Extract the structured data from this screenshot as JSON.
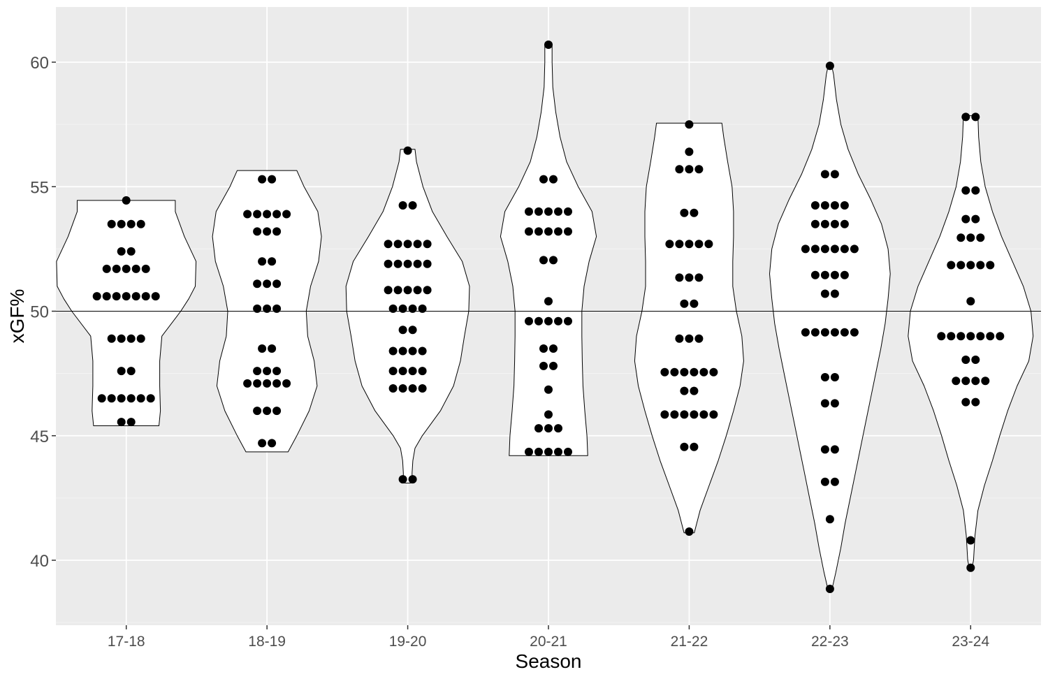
{
  "chart_data": {
    "type": "violin",
    "title": "",
    "xlabel": "Season",
    "ylabel": "xGF%",
    "categories": [
      "17-18",
      "18-19",
      "19-20",
      "20-21",
      "21-22",
      "22-23",
      "23-24"
    ],
    "ylim": [
      37.3,
      62.2
    ],
    "yticks": [
      40,
      45,
      50,
      55,
      60
    ],
    "reference_line": 50,
    "grid": true,
    "panel_color": "#ebebeb",
    "violin_fill": "#ffffff",
    "point_color": "#000000",
    "series": [
      {
        "category": "17-18",
        "ymin": 45.4,
        "ymax": 54.45,
        "profile": [
          [
            45.4,
            0.9
          ],
          [
            46.0,
            0.94
          ],
          [
            47.0,
            0.92
          ],
          [
            48.0,
            0.92
          ],
          [
            49.0,
            0.98
          ],
          [
            50.0,
            1.5
          ],
          [
            50.5,
            1.72
          ],
          [
            51.0,
            1.9
          ],
          [
            52.0,
            1.92
          ],
          [
            53.0,
            1.6
          ],
          [
            54.0,
            1.35
          ],
          [
            54.45,
            1.35
          ]
        ],
        "groups": [
          [
            54.45,
            1
          ],
          [
            53.5,
            4
          ],
          [
            52.4,
            2
          ],
          [
            51.7,
            5
          ],
          [
            50.6,
            7
          ],
          [
            48.9,
            4
          ],
          [
            47.6,
            2
          ],
          [
            46.5,
            6
          ],
          [
            45.55,
            2
          ]
        ]
      },
      {
        "category": "18-19",
        "ymin": 44.35,
        "ymax": 55.65,
        "profile": [
          [
            44.35,
            0.58
          ],
          [
            45.0,
            0.82
          ],
          [
            46.0,
            1.16
          ],
          [
            47.0,
            1.38
          ],
          [
            48.0,
            1.3
          ],
          [
            49.0,
            1.12
          ],
          [
            50.0,
            1.08
          ],
          [
            51.0,
            1.2
          ],
          [
            52.0,
            1.42
          ],
          [
            53.0,
            1.5
          ],
          [
            54.0,
            1.4
          ],
          [
            55.0,
            1.02
          ],
          [
            55.65,
            0.82
          ]
        ],
        "groups": [
          [
            55.3,
            2
          ],
          [
            53.9,
            5
          ],
          [
            53.2,
            3
          ],
          [
            52.0,
            2
          ],
          [
            51.1,
            3
          ],
          [
            50.1,
            3
          ],
          [
            48.5,
            2
          ],
          [
            47.6,
            3
          ],
          [
            47.1,
            5
          ],
          [
            46.0,
            3
          ],
          [
            44.7,
            2
          ]
        ]
      },
      {
        "category": "19-20",
        "ymin": 43.1,
        "ymax": 56.5,
        "profile": [
          [
            43.1,
            0.12
          ],
          [
            43.5,
            0.12
          ],
          [
            44.0,
            0.14
          ],
          [
            44.5,
            0.2
          ],
          [
            45.0,
            0.4
          ],
          [
            46.0,
            0.9
          ],
          [
            47.0,
            1.26
          ],
          [
            48.0,
            1.45
          ],
          [
            49.0,
            1.56
          ],
          [
            50.0,
            1.68
          ],
          [
            51.0,
            1.7
          ],
          [
            52.0,
            1.5
          ],
          [
            53.0,
            1.08
          ],
          [
            54.0,
            0.68
          ],
          [
            55.0,
            0.42
          ],
          [
            56.0,
            0.24
          ],
          [
            56.5,
            0.2
          ]
        ],
        "groups": [
          [
            56.45,
            1
          ],
          [
            54.25,
            2
          ],
          [
            52.7,
            5
          ],
          [
            51.9,
            5
          ],
          [
            50.85,
            5
          ],
          [
            50.1,
            4
          ],
          [
            49.25,
            2
          ],
          [
            48.4,
            4
          ],
          [
            47.6,
            4
          ],
          [
            46.9,
            4
          ],
          [
            43.25,
            2
          ]
        ]
      },
      {
        "category": "20-21",
        "ymin": 44.2,
        "ymax": 60.7,
        "profile": [
          [
            44.2,
            1.08
          ],
          [
            45.0,
            1.06
          ],
          [
            46.0,
            1.0
          ],
          [
            47.0,
            0.95
          ],
          [
            48.0,
            0.93
          ],
          [
            49.0,
            0.92
          ],
          [
            50.0,
            0.92
          ],
          [
            51.0,
            0.98
          ],
          [
            52.0,
            1.12
          ],
          [
            53.0,
            1.32
          ],
          [
            54.0,
            1.2
          ],
          [
            55.0,
            0.82
          ],
          [
            56.0,
            0.5
          ],
          [
            57.0,
            0.32
          ],
          [
            58.0,
            0.2
          ],
          [
            59.0,
            0.12
          ],
          [
            60.0,
            0.1
          ],
          [
            60.7,
            0.1
          ]
        ],
        "groups": [
          [
            60.7,
            1
          ],
          [
            55.3,
            2
          ],
          [
            54.0,
            5
          ],
          [
            53.2,
            5
          ],
          [
            52.05,
            2
          ],
          [
            50.4,
            1
          ],
          [
            49.6,
            5
          ],
          [
            48.5,
            2
          ],
          [
            47.8,
            2
          ],
          [
            46.85,
            1
          ],
          [
            45.85,
            1
          ],
          [
            45.3,
            3
          ],
          [
            44.35,
            5
          ]
        ]
      },
      {
        "category": "21-22",
        "ymin": 41.1,
        "ymax": 57.55,
        "profile": [
          [
            41.1,
            0.14
          ],
          [
            42.0,
            0.3
          ],
          [
            43.0,
            0.55
          ],
          [
            44.0,
            0.8
          ],
          [
            45.0,
            1.02
          ],
          [
            46.0,
            1.22
          ],
          [
            47.0,
            1.4
          ],
          [
            48.0,
            1.5
          ],
          [
            49.0,
            1.45
          ],
          [
            50.0,
            1.3
          ],
          [
            51.0,
            1.2
          ],
          [
            52.0,
            1.2
          ],
          [
            53.0,
            1.22
          ],
          [
            54.0,
            1.22
          ],
          [
            55.0,
            1.18
          ],
          [
            56.0,
            1.06
          ],
          [
            57.0,
            0.95
          ],
          [
            57.55,
            0.9
          ]
        ],
        "groups": [
          [
            57.5,
            1
          ],
          [
            56.4,
            1
          ],
          [
            55.7,
            3
          ],
          [
            53.95,
            2
          ],
          [
            52.7,
            5
          ],
          [
            51.35,
            3
          ],
          [
            50.3,
            2
          ],
          [
            48.9,
            3
          ],
          [
            47.55,
            6
          ],
          [
            46.8,
            2
          ],
          [
            45.85,
            6
          ],
          [
            44.55,
            2
          ],
          [
            41.15,
            1
          ]
        ]
      },
      {
        "category": "22-23",
        "ymin": 38.8,
        "ymax": 59.85,
        "profile": [
          [
            38.8,
            0.05
          ],
          [
            39.5,
            0.16
          ],
          [
            40.5,
            0.3
          ],
          [
            41.5,
            0.42
          ],
          [
            42.5,
            0.56
          ],
          [
            43.5,
            0.7
          ],
          [
            44.5,
            0.84
          ],
          [
            45.5,
            0.98
          ],
          [
            46.5,
            1.12
          ],
          [
            47.5,
            1.26
          ],
          [
            48.5,
            1.4
          ],
          [
            49.5,
            1.52
          ],
          [
            50.5,
            1.6
          ],
          [
            51.5,
            1.66
          ],
          [
            52.5,
            1.6
          ],
          [
            53.5,
            1.42
          ],
          [
            54.5,
            1.12
          ],
          [
            55.5,
            0.78
          ],
          [
            56.5,
            0.5
          ],
          [
            57.5,
            0.3
          ],
          [
            58.5,
            0.18
          ],
          [
            59.5,
            0.1
          ],
          [
            59.85,
            0.05
          ]
        ],
        "groups": [
          [
            59.85,
            1
          ],
          [
            55.5,
            2
          ],
          [
            54.25,
            4
          ],
          [
            53.5,
            4
          ],
          [
            52.5,
            6
          ],
          [
            51.45,
            4
          ],
          [
            50.7,
            2
          ],
          [
            49.15,
            6
          ],
          [
            47.35,
            2
          ],
          [
            46.3,
            2
          ],
          [
            44.45,
            2
          ],
          [
            43.15,
            2
          ],
          [
            41.65,
            1
          ],
          [
            38.85,
            1
          ]
        ]
      },
      {
        "category": "23-24",
        "ymin": 39.65,
        "ymax": 57.85,
        "profile": [
          [
            39.65,
            0.03
          ],
          [
            40.0,
            0.08
          ],
          [
            41.0,
            0.12
          ],
          [
            42.0,
            0.2
          ],
          [
            43.0,
            0.38
          ],
          [
            44.0,
            0.6
          ],
          [
            45.0,
            0.8
          ],
          [
            46.0,
            1.02
          ],
          [
            47.0,
            1.28
          ],
          [
            48.0,
            1.6
          ],
          [
            49.0,
            1.72
          ],
          [
            50.0,
            1.66
          ],
          [
            51.0,
            1.45
          ],
          [
            52.0,
            1.15
          ],
          [
            53.0,
            0.85
          ],
          [
            54.0,
            0.6
          ],
          [
            55.0,
            0.4
          ],
          [
            56.0,
            0.28
          ],
          [
            57.0,
            0.22
          ],
          [
            57.85,
            0.2
          ]
        ],
        "groups": [
          [
            57.8,
            2
          ],
          [
            54.85,
            2
          ],
          [
            53.7,
            2
          ],
          [
            52.95,
            3
          ],
          [
            51.85,
            5
          ],
          [
            50.4,
            1
          ],
          [
            49.0,
            7
          ],
          [
            48.05,
            2
          ],
          [
            47.2,
            4
          ],
          [
            46.35,
            2
          ],
          [
            40.8,
            1
          ],
          [
            39.7,
            1
          ]
        ]
      }
    ]
  }
}
